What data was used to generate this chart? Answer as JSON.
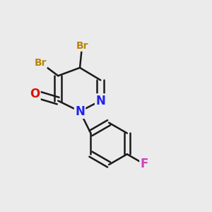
{
  "background_color": "#ebebeb",
  "bond_color": "#1a1a1a",
  "bond_width": 1.8,
  "atom_colors": {
    "Br": "#b8860b",
    "O": "#dd1100",
    "N": "#2222ee",
    "F": "#cc44bb"
  }
}
